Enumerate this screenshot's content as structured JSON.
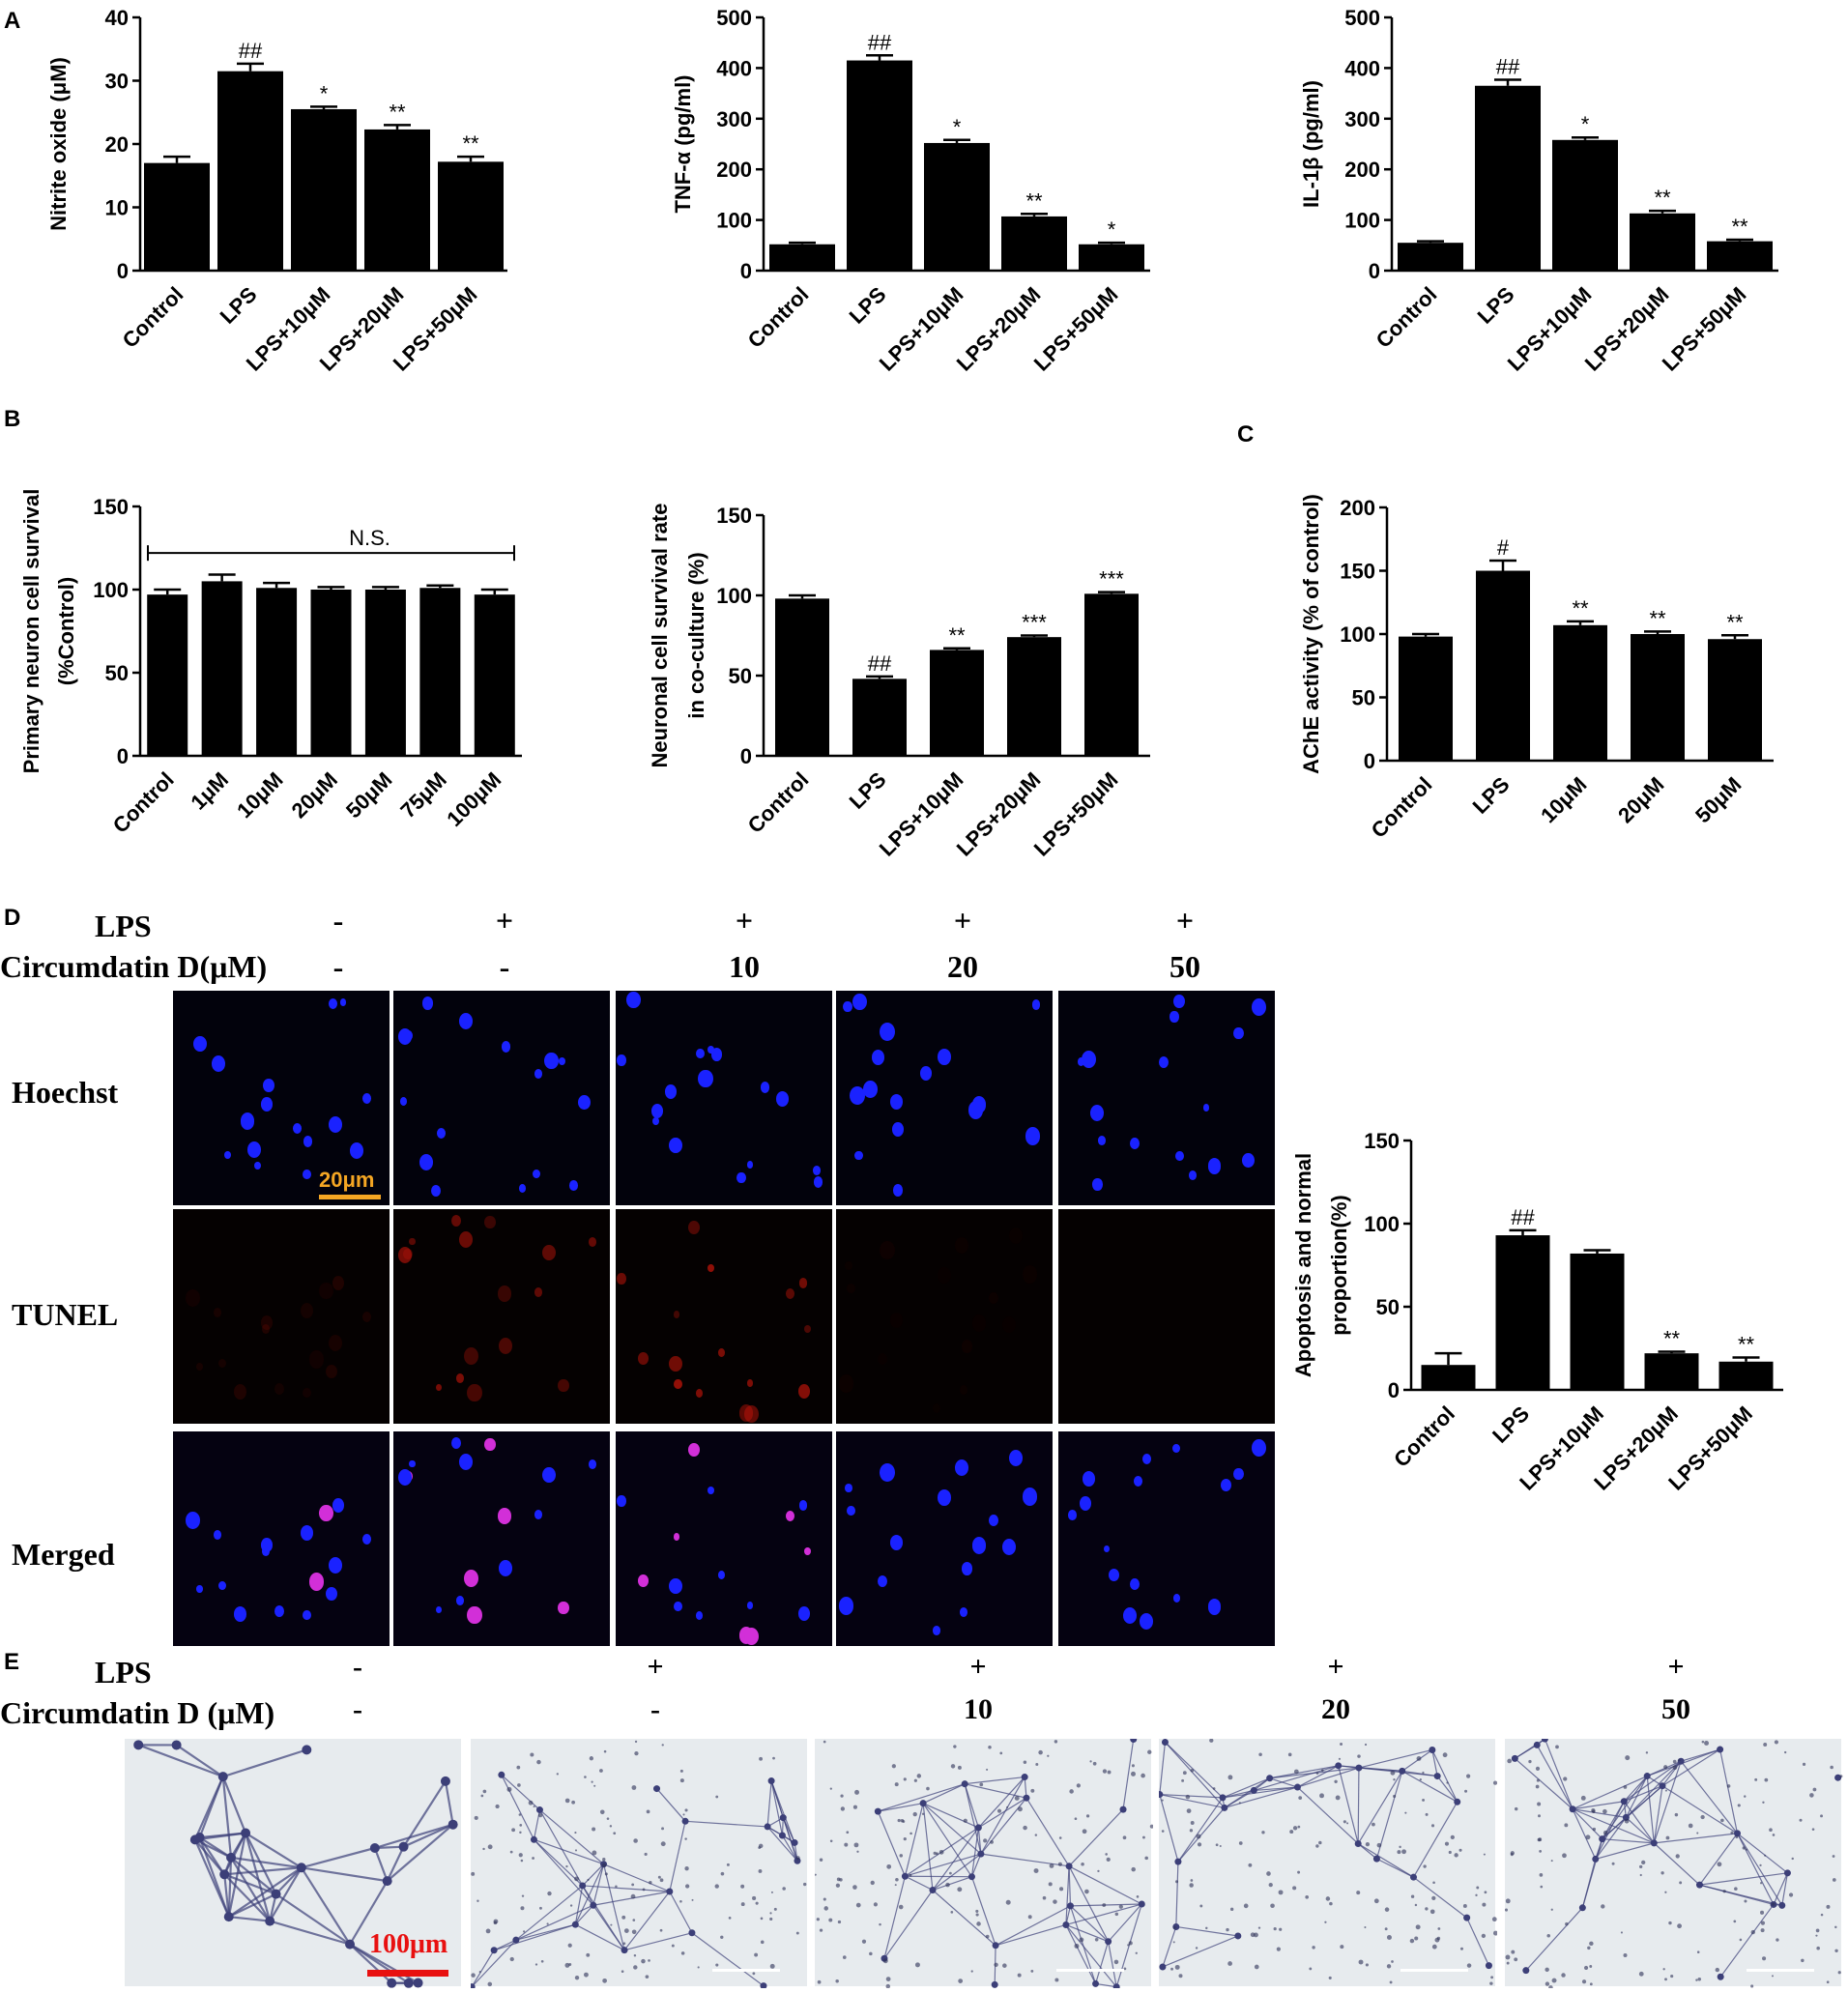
{
  "panel_labels": {
    "A": "A",
    "B": "B",
    "C": "C",
    "D": "D",
    "E": "E"
  },
  "chart_data": [
    {
      "id": "nitrite",
      "type": "bar",
      "ylabel": "Nitrite oxide (μM)",
      "ylim": [
        0,
        40
      ],
      "yticks": [
        0,
        10,
        20,
        30,
        40
      ],
      "categories": [
        "Control",
        "LPS",
        "LPS+10μM",
        "LPS+20μM",
        "LPS+50μM"
      ],
      "values": [
        17,
        31.5,
        25.5,
        22.3,
        17.2
      ],
      "errors": [
        1.0,
        1.2,
        0.4,
        0.7,
        0.8
      ],
      "annotations": [
        "",
        "##",
        "*",
        "**",
        "**"
      ]
    },
    {
      "id": "tnf",
      "type": "bar",
      "ylabel": "TNF-α  (pg/ml)",
      "ylim": [
        0,
        500
      ],
      "yticks": [
        0,
        100,
        200,
        300,
        400,
        500
      ],
      "categories": [
        "Control",
        "LPS",
        "LPS+10μM",
        "LPS+20μM",
        "LPS+50μM"
      ],
      "values": [
        52,
        415,
        252,
        107,
        52
      ],
      "errors": [
        3,
        10,
        6,
        5,
        3
      ],
      "annotations": [
        "",
        "##",
        "*",
        "**",
        "*"
      ]
    },
    {
      "id": "il1b",
      "type": "bar",
      "ylabel": "IL-1β  (pg/ml)",
      "ylim": [
        0,
        500
      ],
      "yticks": [
        0,
        100,
        200,
        300,
        400,
        500
      ],
      "categories": [
        "Control",
        "LPS",
        "LPS+10μM",
        "LPS+20μM",
        "LPS+50μM"
      ],
      "values": [
        55,
        365,
        258,
        113,
        58
      ],
      "errors": [
        3,
        12,
        5,
        5,
        3
      ],
      "annotations": [
        "",
        "##",
        "*",
        "**",
        "**"
      ]
    },
    {
      "id": "survival",
      "type": "bar",
      "ylabel_lines": [
        "Primary neuron cell survival",
        "(%Control)"
      ],
      "ylim": [
        0,
        150
      ],
      "yticks": [
        0,
        50,
        100,
        150
      ],
      "categories": [
        "Control",
        "1μM",
        "10μM",
        "20μM",
        "50μM",
        "75μM",
        "100μM"
      ],
      "values": [
        97,
        105,
        101,
        100,
        100,
        101,
        97
      ],
      "errors": [
        3,
        4,
        3,
        1.5,
        1.5,
        1.5,
        3
      ],
      "annotations": [
        "",
        "",
        "",
        "",
        "",
        "",
        ""
      ],
      "bracket_label": "N.S."
    },
    {
      "id": "coculture",
      "type": "bar",
      "ylabel_lines": [
        "Neuronal cell survival rate",
        "in co-culture (%)"
      ],
      "ylim": [
        0,
        150
      ],
      "yticks": [
        0,
        50,
        100,
        150
      ],
      "categories": [
        "Control",
        "LPS",
        "LPS+10μM",
        "LPS+20μM",
        "LPS+50μM"
      ],
      "values": [
        98,
        48,
        66,
        74,
        101
      ],
      "errors": [
        2,
        1.5,
        1,
        1,
        1
      ],
      "annotations": [
        "",
        "##",
        "**",
        "***",
        "***"
      ]
    },
    {
      "id": "ache",
      "type": "bar",
      "ylabel": "AChE activity (% of control)",
      "ylim": [
        0,
        200
      ],
      "yticks": [
        0,
        50,
        100,
        150,
        200
      ],
      "categories": [
        "Control",
        "LPS",
        "10μM",
        "20μM",
        "50μM"
      ],
      "values": [
        98,
        150,
        107,
        100,
        96
      ],
      "errors": [
        2,
        8,
        3,
        2,
        3
      ],
      "annotations": [
        "",
        "#",
        "**",
        "**",
        "**"
      ]
    },
    {
      "id": "apoptosis",
      "type": "bar",
      "ylabel_lines": [
        "Apoptosis and normal",
        "proportion(%)"
      ],
      "ylim": [
        0,
        150
      ],
      "yticks": [
        0,
        50,
        100,
        150
      ],
      "categories": [
        "Control",
        "LPS",
        "LPS+10μM",
        "LPS+20μM",
        "LPS+50μM"
      ],
      "values": [
        15,
        93,
        82,
        22,
        17
      ],
      "errors": [
        7,
        3,
        2,
        1,
        2.5
      ],
      "annotations": [
        "",
        "##",
        "",
        "**",
        "**"
      ]
    }
  ],
  "panel_d": {
    "header_lps": "LPS",
    "header_cd": "Circumdatin D(μM)",
    "lps_signs": [
      "-",
      "+",
      "+",
      "+",
      "+"
    ],
    "cd_values": [
      "-",
      "-",
      "10",
      "20",
      "50"
    ],
    "row_labels": [
      "Hoechst",
      "TUNEL",
      "Merged"
    ],
    "scale_bar": "20μm",
    "colors": {
      "hoechst": "#1a22ff",
      "tunel": "#c8150a",
      "merged_pink": "#d22fd8",
      "scale": "#f5a623"
    }
  },
  "panel_e": {
    "header_lps": "LPS",
    "header_cd": "Circumdatin D (μM)",
    "lps_signs": [
      "-",
      "+",
      "+",
      "+",
      "+"
    ],
    "cd_values": [
      "-",
      "-",
      "10",
      "20",
      "50"
    ],
    "scale_bar": "100μm",
    "colors": {
      "stain": "#3c3f78",
      "scale": "#e81010"
    }
  }
}
